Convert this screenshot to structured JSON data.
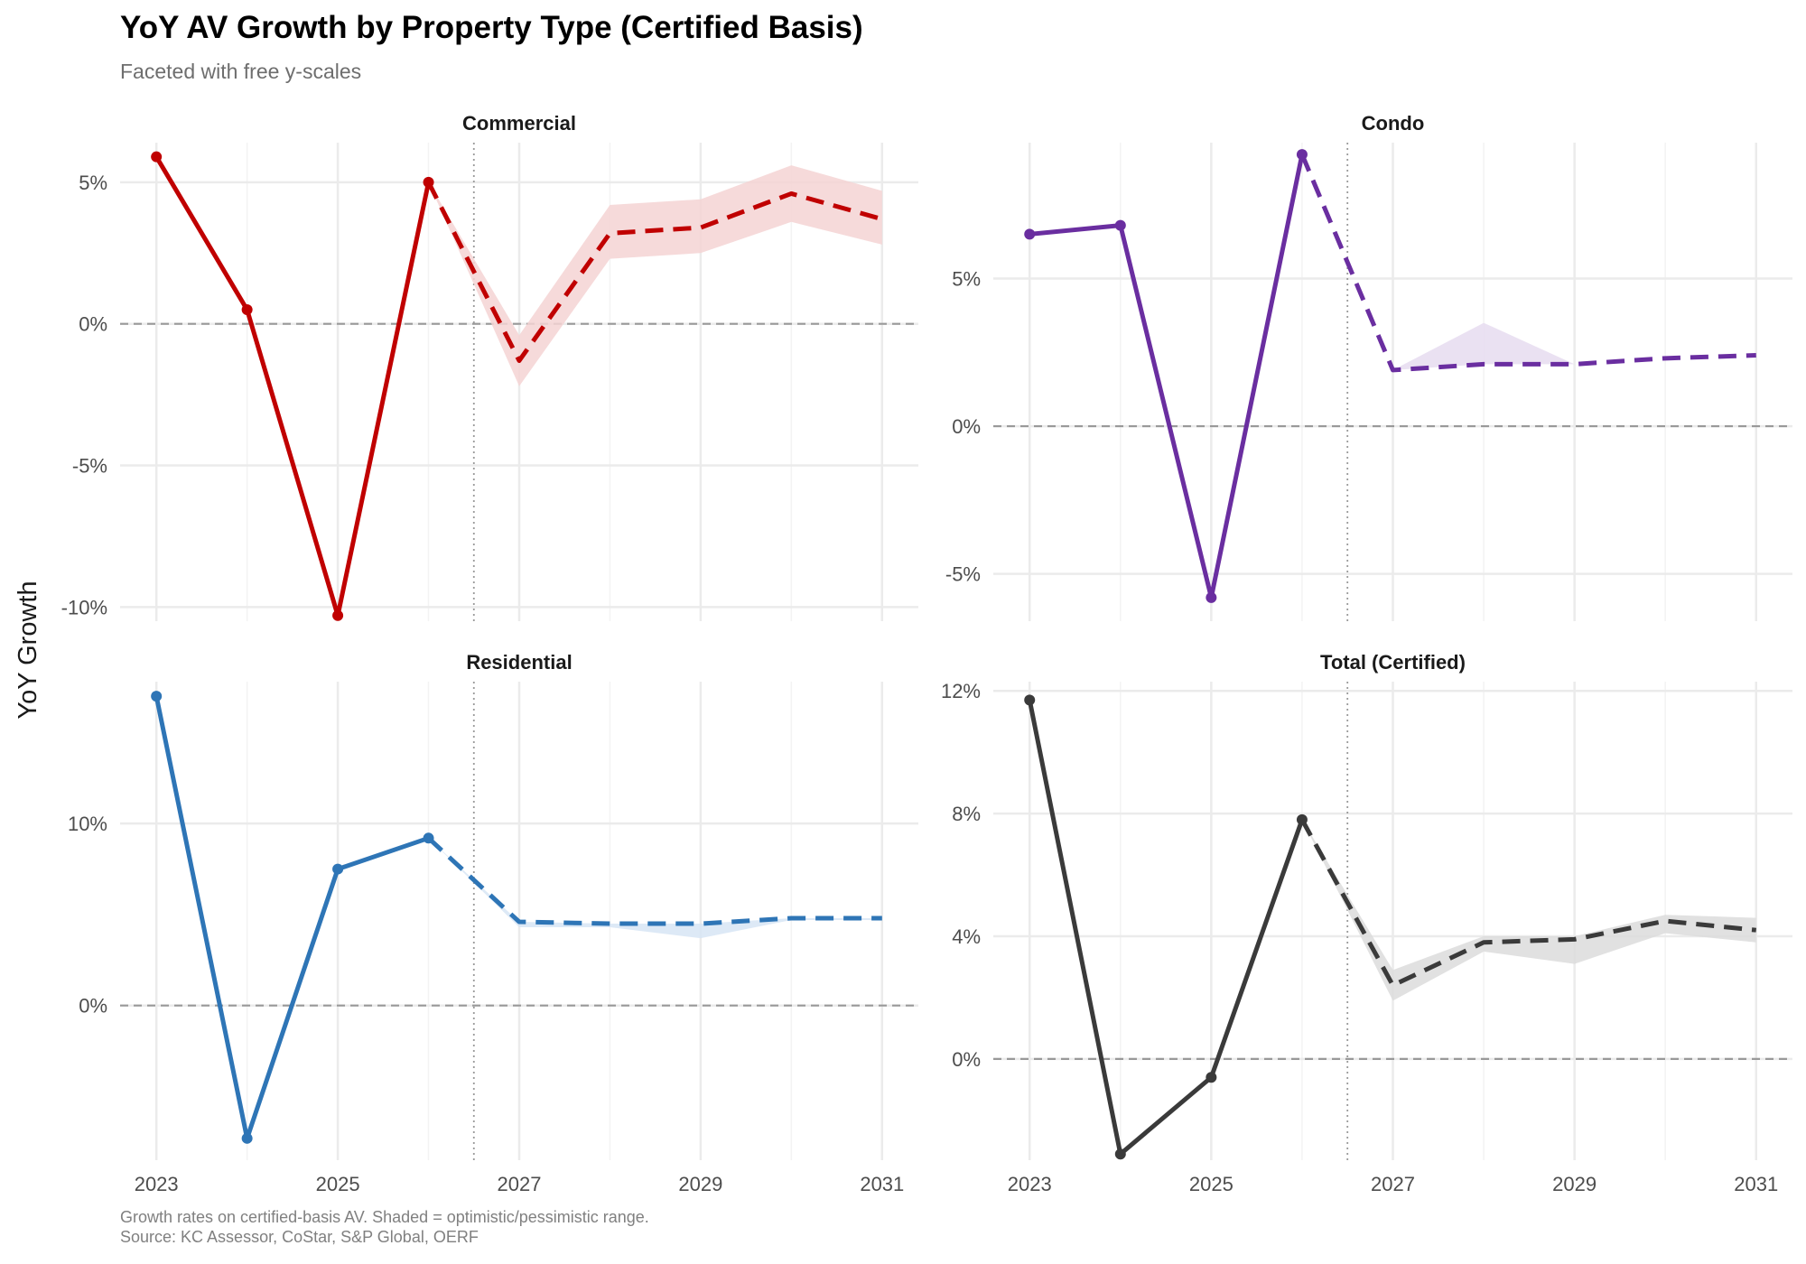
{
  "title": "YoY AV Growth by Property Type (Certified Basis)",
  "subtitle": "Faceted with free y-scales",
  "ylabel": "YoY Growth",
  "caption": [
    "Growth rates on certified-basis AV. Shaded = optimistic/pessimistic range.",
    "Source: KC Assessor, CoStar, S&P Global, OERF"
  ],
  "chart_data": [
    {
      "type": "line",
      "panel": "Commercial",
      "color": "#c00000",
      "band_color": "#f5d3d3",
      "x_ticks": [
        2023,
        2025,
        2027,
        2029,
        2031
      ],
      "y_ticks": [
        -10,
        -5,
        0,
        5
      ],
      "y_tick_labels": [
        "-10%",
        "-5%",
        "0%",
        "5%"
      ],
      "ylim": [
        -10.5,
        6.4
      ],
      "actual": {
        "x": [
          2023,
          2024,
          2025,
          2026
        ],
        "y": [
          5.9,
          0.5,
          -10.3,
          5.0
        ]
      },
      "forecast": {
        "x": [
          2026,
          2027,
          2028,
          2029,
          2030,
          2031
        ],
        "y": [
          5.0,
          -1.3,
          3.2,
          3.4,
          4.6,
          3.7
        ]
      },
      "range": {
        "x": [
          2026,
          2027,
          2028,
          2029,
          2030,
          2031
        ],
        "low": [
          5.0,
          -2.2,
          2.3,
          2.5,
          3.6,
          2.8
        ],
        "high": [
          5.0,
          -0.4,
          4.2,
          4.4,
          5.6,
          4.7
        ]
      }
    },
    {
      "type": "line",
      "panel": "Condo",
      "color": "#6a2ea0",
      "band_color": "#e6dcf0",
      "x_ticks": [
        2023,
        2025,
        2027,
        2029,
        2031
      ],
      "y_ticks": [
        -5,
        0,
        5
      ],
      "y_tick_labels": [
        "-5%",
        "0%",
        "5%"
      ],
      "ylim": [
        -6.6,
        9.6
      ],
      "actual": {
        "x": [
          2023,
          2024,
          2025,
          2026
        ],
        "y": [
          6.5,
          6.8,
          -5.8,
          9.2
        ]
      },
      "forecast": {
        "x": [
          2026,
          2027,
          2028,
          2029,
          2030,
          2031
        ],
        "y": [
          9.2,
          1.9,
          2.1,
          2.1,
          2.3,
          2.4
        ]
      },
      "range": {
        "x": [
          2026,
          2027,
          2028,
          2029,
          2030,
          2031
        ],
        "low": [
          9.2,
          1.9,
          2.1,
          2.1,
          2.3,
          2.4
        ],
        "high": [
          9.2,
          1.9,
          3.5,
          2.1,
          2.3,
          2.4
        ]
      }
    },
    {
      "type": "line",
      "panel": "Residential",
      "color": "#2e75b6",
      "band_color": "#d7e5f5",
      "x_ticks": [
        2023,
        2025,
        2027,
        2029,
        2031
      ],
      "y_ticks": [
        0,
        10
      ],
      "y_tick_labels": [
        "0%",
        "10%"
      ],
      "ylim": [
        -8.5,
        17.8
      ],
      "actual": {
        "x": [
          2023,
          2024,
          2025,
          2026
        ],
        "y": [
          17.0,
          -7.3,
          7.5,
          9.2
        ]
      },
      "forecast": {
        "x": [
          2026,
          2027,
          2028,
          2029,
          2030,
          2031
        ],
        "y": [
          9.2,
          4.6,
          4.5,
          4.5,
          4.8,
          4.8
        ]
      },
      "range": {
        "x": [
          2026,
          2027,
          2028,
          2029,
          2030,
          2031
        ],
        "low": [
          9.2,
          4.3,
          4.3,
          3.7,
          4.7,
          4.7
        ],
        "high": [
          9.2,
          4.6,
          4.5,
          4.5,
          4.8,
          4.8
        ]
      }
    },
    {
      "type": "line",
      "panel": "Total (Certified)",
      "color": "#3a3a3a",
      "band_color": "#dcdcdc",
      "x_ticks": [
        2023,
        2025,
        2027,
        2029,
        2031
      ],
      "y_ticks": [
        0,
        4,
        8,
        12
      ],
      "y_tick_labels": [
        "0%",
        "4%",
        "8%",
        "12%"
      ],
      "ylim": [
        -3.3,
        12.3
      ],
      "actual": {
        "x": [
          2023,
          2024,
          2025,
          2026
        ],
        "y": [
          11.7,
          -3.1,
          -0.6,
          7.8
        ]
      },
      "forecast": {
        "x": [
          2026,
          2027,
          2028,
          2029,
          2030,
          2031
        ],
        "y": [
          7.8,
          2.4,
          3.8,
          3.9,
          4.5,
          4.2
        ]
      },
      "range": {
        "x": [
          2026,
          2027,
          2028,
          2029,
          2030,
          2031
        ],
        "low": [
          7.8,
          1.9,
          3.5,
          3.1,
          4.1,
          3.8
        ],
        "high": [
          7.8,
          2.9,
          4.0,
          4.0,
          4.7,
          4.6
        ]
      }
    }
  ],
  "forecast_divider_x": 2026.5,
  "reference_y": 0
}
